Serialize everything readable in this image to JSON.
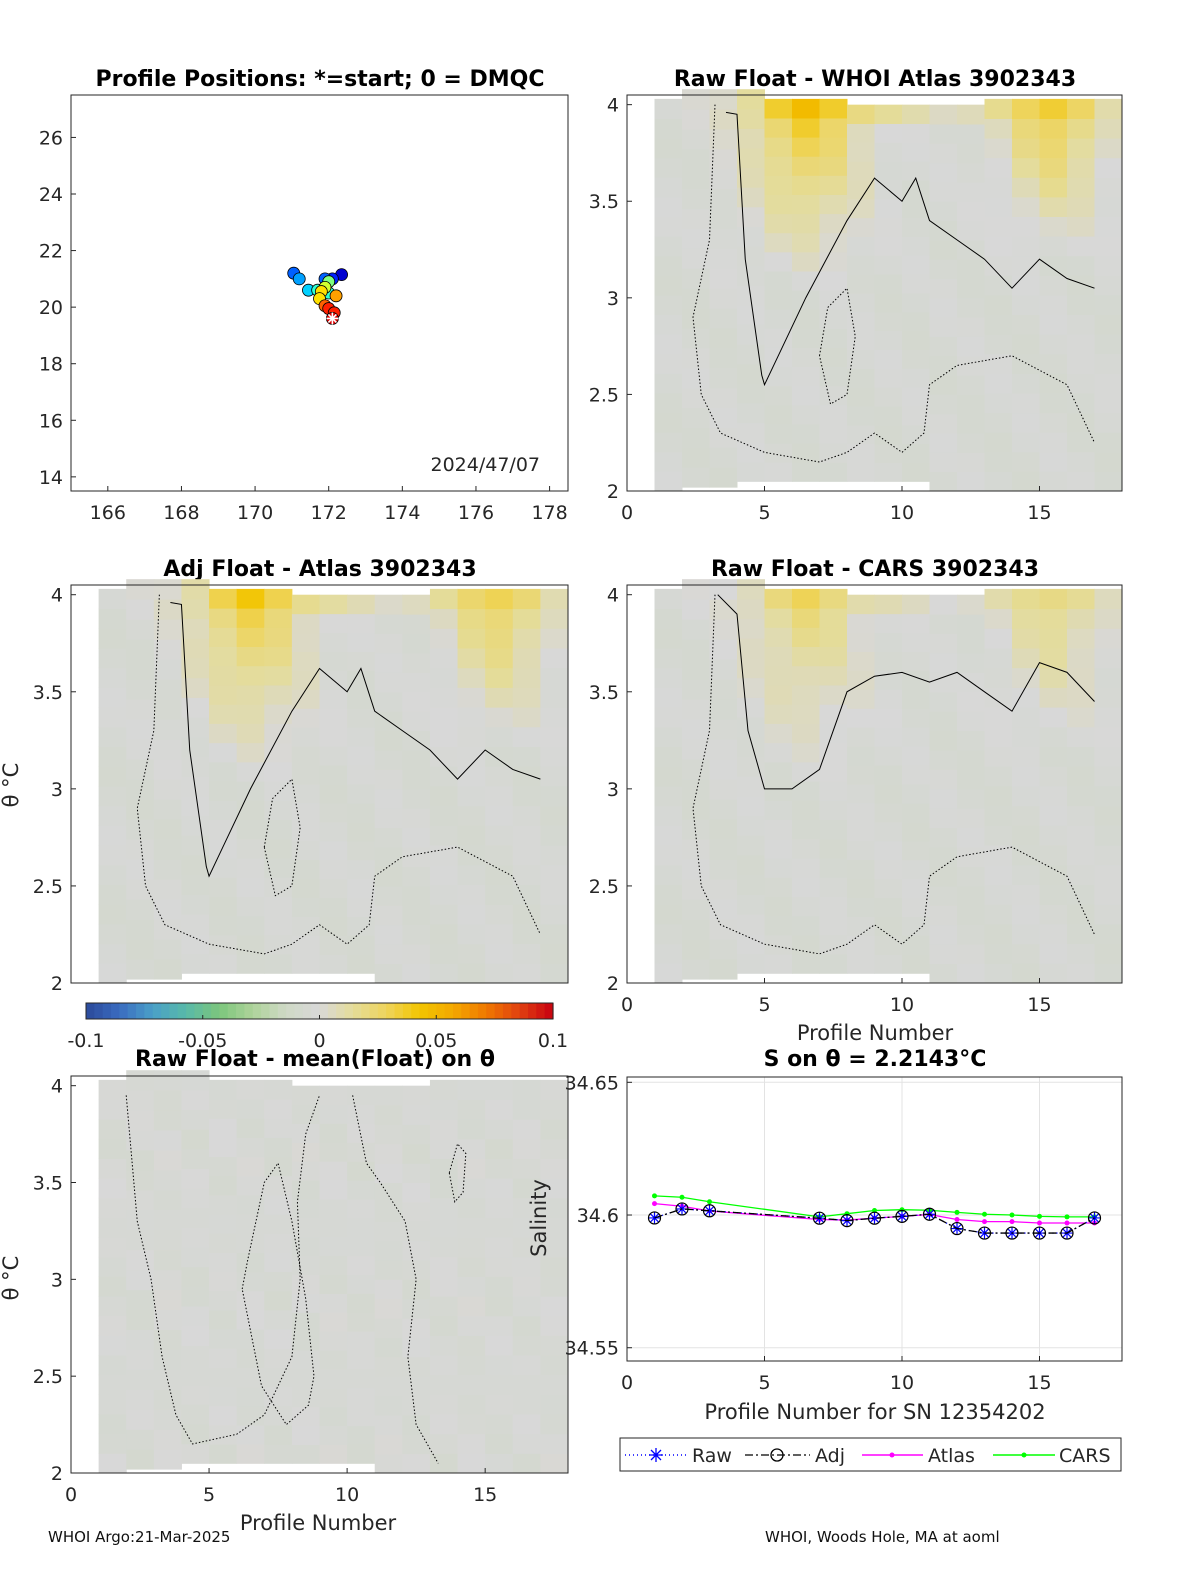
{
  "panels": {
    "positions": {
      "title": "Profile Positions: *=start; 0 = DMQC",
      "date_label": "2024/47/07",
      "xticks": [
        "166",
        "168",
        "170",
        "172",
        "174",
        "176",
        "178"
      ],
      "yticks": [
        "14",
        "16",
        "18",
        "20",
        "22",
        "24",
        "26"
      ]
    },
    "raw_atlas": {
      "title": "Raw Float - WHOI Atlas  3902343"
    },
    "adj_atlas": {
      "title": "Adj Float - Atlas  3902343",
      "ylabel": "θ °C"
    },
    "raw_cars": {
      "title": "Raw Float - CARS  3902343",
      "xlabel": "Profile Number"
    },
    "raw_mean": {
      "title": "Raw Float - mean(Float) on θ",
      "ylabel": "θ °C",
      "xlabel": "Profile Number"
    },
    "s_on_theta": {
      "title": "S on θ = 2.2143°C",
      "ylabel": "Salinity",
      "xlabel": "Profile Number for SN 12354202"
    }
  },
  "theta_ticks": [
    "2",
    "2.5",
    "3",
    "3.5",
    "4"
  ],
  "profile_ticks": [
    "0",
    "5",
    "10",
    "15"
  ],
  "colorbar": {
    "ticks": [
      "-0.1",
      "-0.05",
      "0",
      "0.05",
      "0.1"
    ]
  },
  "legend": {
    "raw": "Raw",
    "adj": "Adj",
    "atlas": "Atlas",
    "cars": "CARS"
  },
  "footer": {
    "left": "WHOI Argo:21-Mar-2025",
    "right": "WHOI, Woods Hole, MA at aoml"
  },
  "colors": {
    "raw": "#0000ff",
    "adj": "#000000",
    "atlas": "#ff00ff",
    "cars": "#00ff00",
    "contour": "#000000",
    "positive": "#f2c500",
    "neutral": "#d8d8d8"
  },
  "chart_data": [
    {
      "type": "scatter",
      "title": "Profile Positions: *=start; 0 = DMQC",
      "xlim": [
        165,
        178.5
      ],
      "ylim": [
        13.5,
        27.5
      ],
      "x": [
        172.1,
        172.15,
        172.0,
        171.9,
        172.2,
        171.75,
        171.8,
        171.9,
        172.0,
        172.0,
        171.7,
        171.45,
        171.2,
        171.05,
        171.9,
        172.1,
        172.35
      ],
      "y": [
        19.6,
        19.8,
        19.95,
        20.05,
        20.4,
        20.3,
        20.55,
        20.7,
        20.9,
        20.5,
        20.6,
        20.6,
        21.0,
        21.2,
        21.0,
        21.0,
        21.15
      ],
      "start_marker": "*"
    },
    {
      "type": "heatmap",
      "title": "Raw Float - WHOI Atlas  3902343",
      "xlim": [
        0,
        18
      ],
      "ylim": [
        2,
        4.05
      ],
      "columns": [
        1,
        17
      ],
      "anomaly_peaks": [
        {
          "profile": 6.5,
          "theta": 3.95,
          "value": 0.04
        },
        {
          "profile": 15.5,
          "theta": 3.95,
          "value": 0.035
        }
      ],
      "contour_levels": [
        0,
        -0.005
      ]
    },
    {
      "type": "heatmap",
      "title": "Adj Float - Atlas  3902343",
      "xlim": [
        0,
        18
      ],
      "ylim": [
        2,
        4.05
      ],
      "anomaly_peaks": [
        {
          "profile": 6.5,
          "theta": 3.95,
          "value": 0.035
        },
        {
          "profile": 15.5,
          "theta": 3.95,
          "value": 0.035
        }
      ]
    },
    {
      "type": "heatmap",
      "title": "Raw Float - CARS  3902343",
      "xlim": [
        0,
        18
      ],
      "ylim": [
        2,
        4.05
      ],
      "anomaly_peaks": [
        {
          "profile": 6.5,
          "theta": 3.95,
          "value": 0.025
        },
        {
          "profile": 15.5,
          "theta": 3.95,
          "value": 0.02
        }
      ]
    },
    {
      "type": "heatmap",
      "title": "Raw Float - mean(Float) on θ",
      "xlim": [
        0,
        18
      ],
      "ylim": [
        2,
        4.05
      ],
      "anomaly_peaks": []
    },
    {
      "type": "line",
      "title": "S on θ = 2.2143°C",
      "xlabel": "Profile Number for SN 12354202",
      "ylabel": "Salinity",
      "xlim": [
        0,
        18
      ],
      "ylim": [
        34.545,
        34.652
      ],
      "yticks": [
        "34.55",
        "34.6",
        "34.65"
      ],
      "series": [
        {
          "name": "Raw",
          "x": [
            1,
            2,
            3,
            7,
            8,
            9,
            10,
            11,
            12,
            13,
            14,
            15,
            16,
            17
          ],
          "y": [
            34.5989,
            34.6023,
            34.6016,
            34.5988,
            34.5979,
            34.5988,
            34.5995,
            34.6003,
            34.5949,
            34.5932,
            34.5932,
            34.5932,
            34.5932,
            34.5989
          ]
        },
        {
          "name": "Adj",
          "x": [
            1,
            2,
            3,
            7,
            8,
            9,
            10,
            11,
            12,
            13,
            14,
            15,
            16,
            17
          ],
          "y": [
            34.5989,
            34.6023,
            34.6016,
            34.5988,
            34.5979,
            34.5988,
            34.5995,
            34.6003,
            34.5949,
            34.5932,
            34.5932,
            34.5932,
            34.5932,
            34.5989
          ]
        },
        {
          "name": "Atlas",
          "x": [
            1,
            2,
            3,
            7,
            8,
            9,
            10,
            11,
            12,
            13,
            14,
            15,
            16,
            17
          ],
          "y": [
            34.6043,
            34.6033,
            34.6015,
            34.5983,
            34.5981,
            34.5988,
            34.5995,
            34.6002,
            34.5983,
            34.5975,
            34.5975,
            34.597,
            34.597,
            34.597
          ]
        },
        {
          "name": "CARS",
          "x": [
            1,
            2,
            3,
            7,
            8,
            9,
            10,
            11,
            12,
            13,
            14,
            15,
            16,
            17
          ],
          "y": [
            34.6072,
            34.6067,
            34.605,
            34.5993,
            34.6005,
            34.6017,
            34.602,
            34.6018,
            34.601,
            34.6003,
            34.6,
            34.5995,
            34.5993,
            34.5993
          ]
        }
      ]
    }
  ]
}
